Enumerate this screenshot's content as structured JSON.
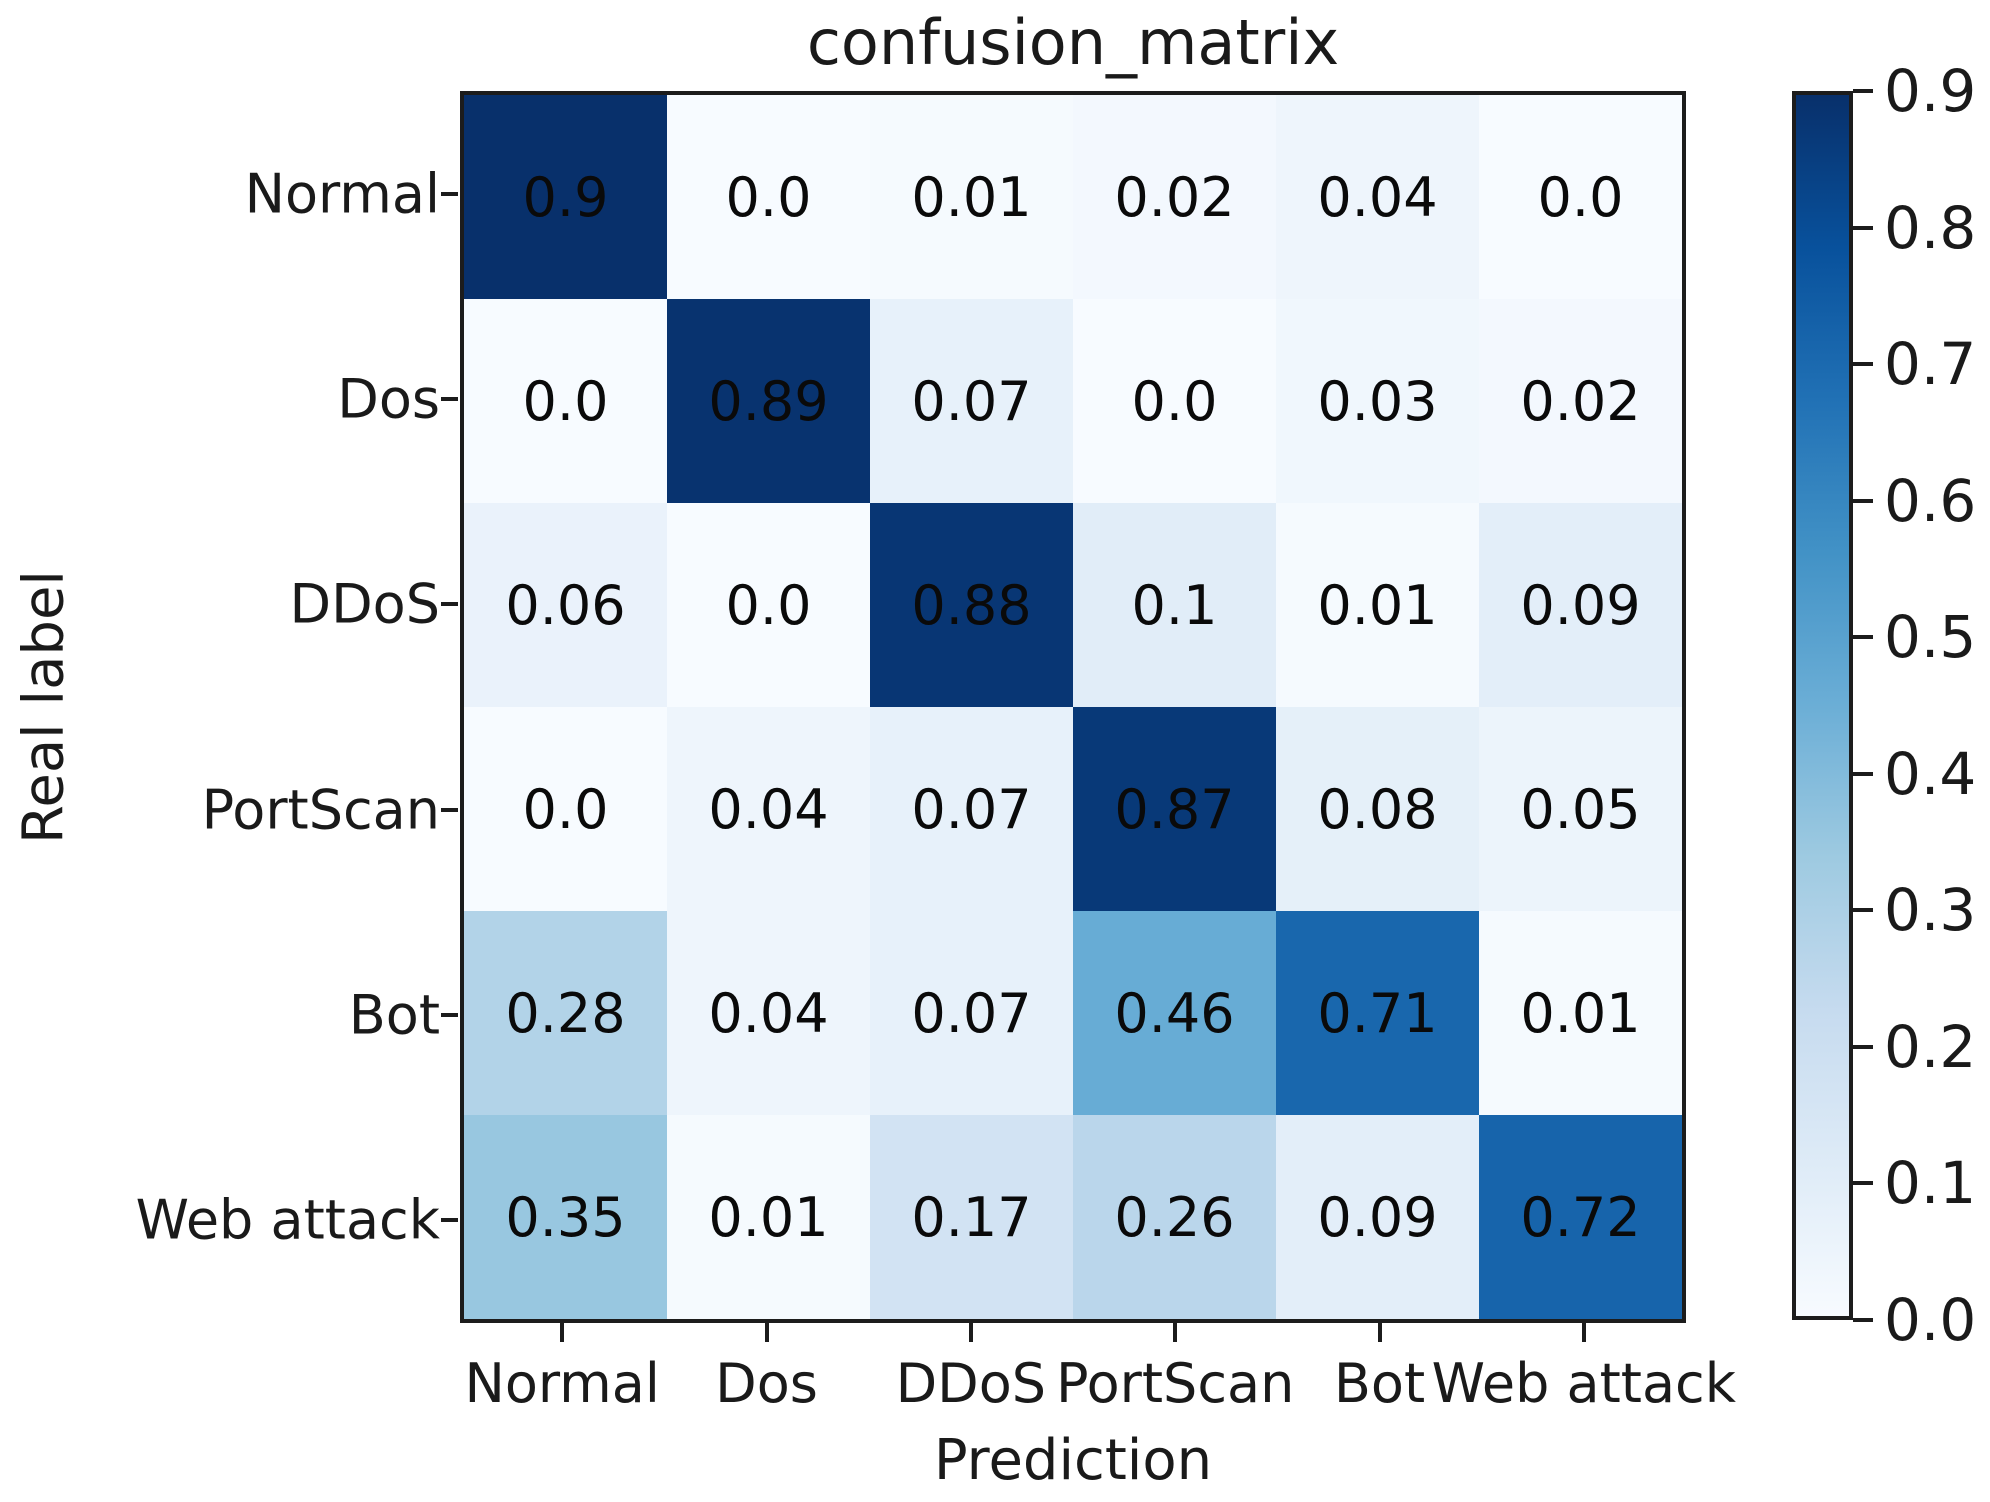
{
  "figure": {
    "background": "#ffffff",
    "spine_color": "#1c1c1c",
    "text_color": "#1a1a1a"
  },
  "chart_data": {
    "type": "heatmap",
    "title": "confusion_matrix",
    "xlabel": "Prediction",
    "ylabel": "Real label",
    "x_categories": [
      "Normal",
      "Dos",
      "DDoS",
      "PortScan",
      "Bot",
      "Web attack"
    ],
    "y_categories": [
      "Normal",
      "Dos",
      "DDoS",
      "PortScan",
      "Bot",
      "Web attack"
    ],
    "values": [
      [
        0.9,
        0.0,
        0.01,
        0.02,
        0.04,
        0.0
      ],
      [
        0.0,
        0.89,
        0.07,
        0.0,
        0.03,
        0.02
      ],
      [
        0.06,
        0.0,
        0.88,
        0.1,
        0.01,
        0.09
      ],
      [
        0.0,
        0.04,
        0.07,
        0.87,
        0.08,
        0.05
      ],
      [
        0.28,
        0.04,
        0.07,
        0.46,
        0.71,
        0.01
      ],
      [
        0.35,
        0.01,
        0.17,
        0.26,
        0.09,
        0.72
      ]
    ],
    "cell_labels": [
      [
        "0.9",
        "0.0",
        "0.01",
        "0.02",
        "0.04",
        "0.0"
      ],
      [
        "0.0",
        "0.89",
        "0.07",
        "0.0",
        "0.03",
        "0.02"
      ],
      [
        "0.06",
        "0.0",
        "0.88",
        "0.1",
        "0.01",
        "0.09"
      ],
      [
        "0.0",
        "0.04",
        "0.07",
        "0.87",
        "0.08",
        "0.05"
      ],
      [
        "0.28",
        "0.04",
        "0.07",
        "0.46",
        "0.71",
        "0.01"
      ],
      [
        "0.35",
        "0.01",
        "0.17",
        "0.26",
        "0.09",
        "0.72"
      ]
    ],
    "vmin": 0.0,
    "vmax": 0.9,
    "annotation_color": "#0a0a0a",
    "grid": false,
    "colormap": {
      "name": "Blues",
      "stops": [
        "#f7fbff",
        "#deebf7",
        "#c6dbef",
        "#9ecae1",
        "#6baed6",
        "#4292c6",
        "#2171b5",
        "#08519c",
        "#08306b"
      ]
    },
    "colorbar": {
      "position": "right",
      "tick_labels": [
        "0.9",
        "0.8",
        "0.7",
        "0.6",
        "0.5",
        "0.4",
        "0.3",
        "0.2",
        "0.1",
        "0.0"
      ]
    }
  }
}
